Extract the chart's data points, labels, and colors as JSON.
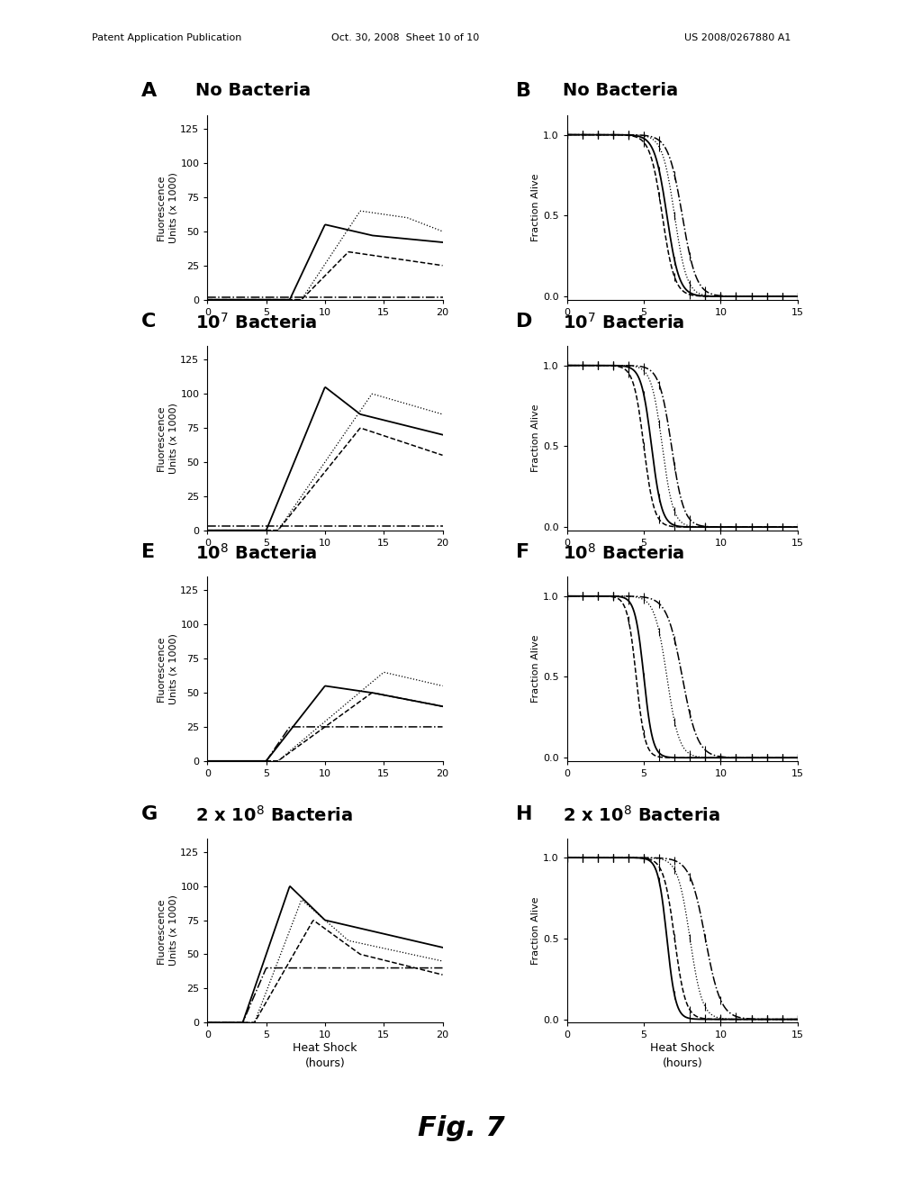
{
  "header_left": "Patent Application Publication",
  "header_mid": "Oct. 30, 2008  Sheet 10 of 10",
  "header_right": "US 2008/0267880 A1",
  "fig_label": "Fig. 7",
  "panel_letters_L": [
    "A",
    "C",
    "E",
    "G"
  ],
  "panel_letters_R": [
    "B",
    "D",
    "F",
    "H"
  ],
  "bacteria_labels_L": [
    "No Bacteria",
    "10$^7$ Bacteria",
    "10$^8$ Bacteria",
    "2 x 10$^8$ Bacteria"
  ],
  "bacteria_labels_R": [
    "No Bacteria",
    "10$^7$ Bacteria",
    "10$^8$ Bacteria",
    "2 x 10$^8$ Bacteria"
  ],
  "ylabel_left": "Fluorescence\nUnits (x 1000)",
  "ylabel_right": "Fraction Alive",
  "xlabel": "Heat Shock\n(hours)",
  "background_color": "#ffffff"
}
